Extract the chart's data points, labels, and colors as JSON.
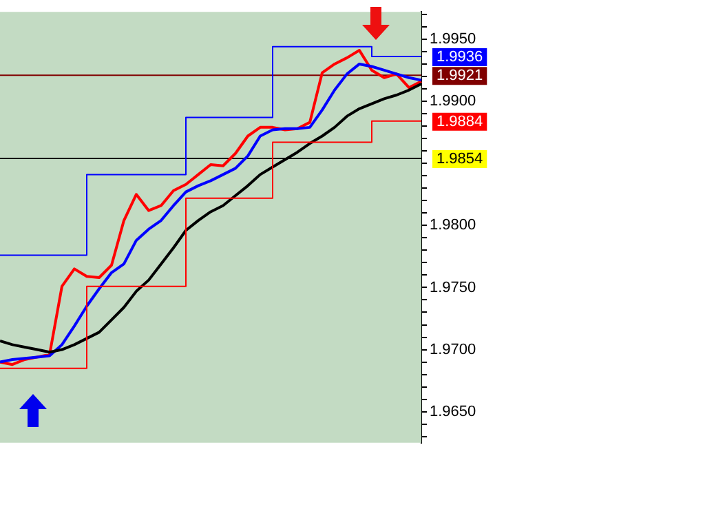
{
  "chart_data": {
    "type": "line",
    "categories": [
      null,
      null,
      null,
      null,
      null,
      null,
      null,
      null,
      null,
      null,
      null,
      null,
      null,
      null,
      null,
      null,
      null,
      null,
      null,
      null,
      null,
      null,
      null,
      null,
      null,
      null,
      null,
      null,
      null,
      null,
      null,
      null,
      null,
      null,
      null
    ],
    "series": [
      {
        "type": "step",
        "color": "#ff0000",
        "values": [
          1.9685,
          1.9685,
          1.9685,
          1.9685,
          1.9685,
          1.9685,
          1.9685,
          1.9751,
          1.9751,
          1.9751,
          1.9751,
          1.9751,
          1.9751,
          1.9751,
          1.9751,
          1.9822,
          1.9822,
          1.9822,
          1.9822,
          1.9822,
          1.9822,
          1.9822,
          1.9867,
          1.9867,
          1.9867,
          1.9867,
          1.9867,
          1.9867,
          1.9867,
          1.9867,
          1.9884,
          1.9884,
          1.9884,
          1.9884,
          1.9884
        ]
      },
      {
        "type": "step",
        "color": "#0000ff",
        "values": [
          1.9776,
          1.9776,
          1.9776,
          1.9776,
          1.9776,
          1.9776,
          1.9776,
          1.9841,
          1.9841,
          1.9841,
          1.9841,
          1.9841,
          1.9841,
          1.9841,
          1.9841,
          1.9887,
          1.9887,
          1.9887,
          1.9887,
          1.9887,
          1.9887,
          1.9887,
          1.9944,
          1.9944,
          1.9944,
          1.9944,
          1.9944,
          1.9944,
          1.9944,
          1.9944,
          1.9936,
          1.9936,
          1.9936,
          1.9936,
          1.9936
        ]
      },
      {
        "color": "#000000",
        "values": [
          1.9707,
          1.9704,
          1.9702,
          1.97,
          1.9698,
          1.97,
          1.9704,
          1.9709,
          1.9714,
          1.9724,
          1.9734,
          1.9747,
          1.9756,
          1.9769,
          1.9782,
          1.9796,
          1.9804,
          1.9811,
          1.9816,
          1.9824,
          1.9832,
          1.9841,
          1.9847,
          1.9853,
          1.9859,
          1.9866,
          1.9872,
          1.9879,
          1.9888,
          1.9894,
          1.9898,
          1.9902,
          1.9905,
          1.9909,
          1.9914
        ]
      },
      {
        "color": "#0000ff",
        "values": [
          1.969,
          1.9692,
          1.9693,
          1.9694,
          1.9695,
          1.9704,
          1.9719,
          1.9735,
          1.9749,
          1.9762,
          1.9769,
          1.9788,
          1.9797,
          1.9804,
          1.9816,
          1.9827,
          1.9832,
          1.9836,
          1.9841,
          1.9846,
          1.9856,
          1.9872,
          1.9877,
          1.9878,
          1.9878,
          1.9879,
          1.9893,
          1.9909,
          1.9922,
          1.993,
          1.9928,
          1.9925,
          1.9922,
          1.9919,
          1.9917
        ]
      },
      {
        "color": "#ff0000",
        "values": [
          1.969,
          1.9688,
          1.9692,
          1.9694,
          1.9696,
          1.9751,
          1.9765,
          1.9759,
          1.9758,
          1.9768,
          1.9804,
          1.9825,
          1.9812,
          1.9816,
          1.9828,
          1.9833,
          1.9841,
          1.9849,
          1.9848,
          1.9858,
          1.9872,
          1.9879,
          1.9879,
          1.9877,
          1.9878,
          1.9883,
          1.9923,
          1.993,
          1.9935,
          1.9941,
          1.9925,
          1.9919,
          1.9922,
          1.9911,
          1.9916
        ]
      }
    ],
    "ylim": [
      1.9625,
      1.9972
    ],
    "yticks": [
      {
        "value": 1.963,
        "label": null
      },
      {
        "value": 1.964,
        "label": null
      },
      {
        "value": 1.965,
        "label": "1.9650"
      },
      {
        "value": 1.966,
        "label": null
      },
      {
        "value": 1.967,
        "label": null
      },
      {
        "value": 1.968,
        "label": null
      },
      {
        "value": 1.969,
        "label": null
      },
      {
        "value": 1.97,
        "label": "1.9700"
      },
      {
        "value": 1.971,
        "label": null
      },
      {
        "value": 1.972,
        "label": null
      },
      {
        "value": 1.973,
        "label": null
      },
      {
        "value": 1.974,
        "label": null
      },
      {
        "value": 1.975,
        "label": "1.9750"
      },
      {
        "value": 1.976,
        "label": null
      },
      {
        "value": 1.977,
        "label": null
      },
      {
        "value": 1.978,
        "label": null
      },
      {
        "value": 1.979,
        "label": null
      },
      {
        "value": 1.98,
        "label": "1.9800"
      },
      {
        "value": 1.981,
        "label": null
      },
      {
        "value": 1.982,
        "label": null
      },
      {
        "value": 1.983,
        "label": null
      },
      {
        "value": 1.984,
        "label": null
      },
      {
        "value": 1.985,
        "label": null
      },
      {
        "value": 1.986,
        "label": null
      },
      {
        "value": 1.987,
        "label": null
      },
      {
        "value": 1.988,
        "label": null
      },
      {
        "value": 1.989,
        "label": null
      },
      {
        "value": 1.99,
        "label": "1.9900"
      },
      {
        "value": 1.991,
        "label": null
      },
      {
        "value": 1.992,
        "label": null
      },
      {
        "value": 1.993,
        "label": null
      },
      {
        "value": 1.994,
        "label": null
      },
      {
        "value": 1.995,
        "label": "1.9950"
      },
      {
        "value": 1.996,
        "label": null
      },
      {
        "value": 1.997,
        "label": null
      }
    ],
    "ref_lines": [
      {
        "axis": "y",
        "value": 1.9921,
        "label": "1.9921",
        "color": "#800000"
      },
      {
        "axis": "y",
        "value": 1.9854,
        "label": "1.9854",
        "color": "#000000"
      }
    ],
    "annotations": [
      "1.9936",
      "1.9884"
    ],
    "tick_labels": "y",
    "legend": false,
    "marker": "none"
  }
}
